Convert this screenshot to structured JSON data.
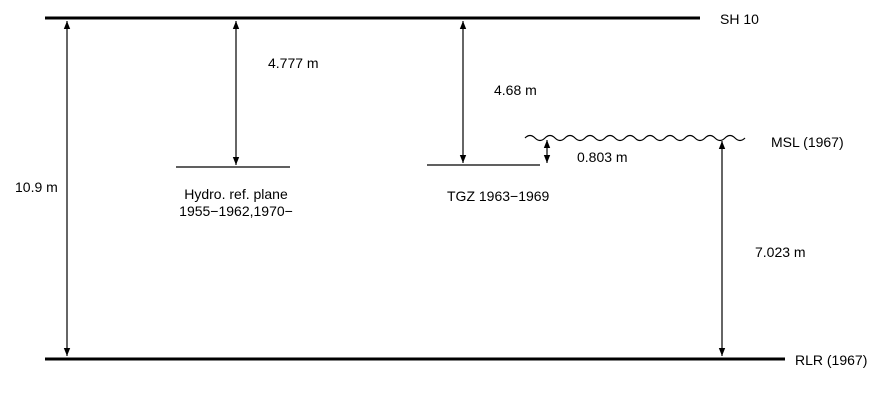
{
  "labels": {
    "sh10": "SH 10",
    "rlr": "RLR (1967)",
    "msl": "MSL (1967)",
    "hydro_line1": "Hydro. ref. plane",
    "hydro_line2": "1955−1962,1970−",
    "tgz": "TGZ 1963−1969"
  },
  "measurements": {
    "total": "10.9 m",
    "sh10_to_hydro": "4.777 m",
    "sh10_to_tgz": "4.68 m",
    "tgz_to_msl": "0.803 m",
    "rlr_to_msl": "7.023 m"
  }
}
